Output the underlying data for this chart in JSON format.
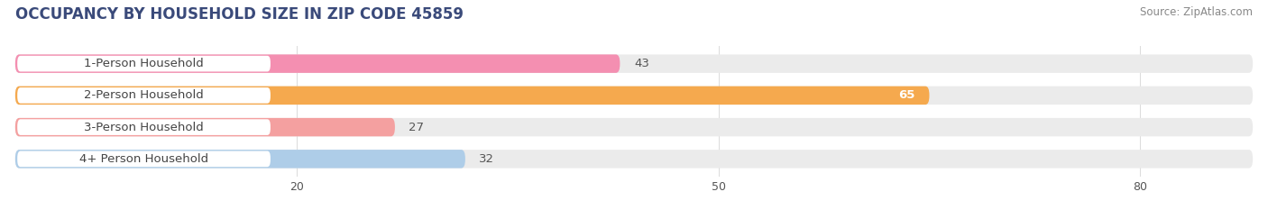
{
  "title": "OCCUPANCY BY HOUSEHOLD SIZE IN ZIP CODE 45859",
  "source": "Source: ZipAtlas.com",
  "categories": [
    "1-Person Household",
    "2-Person Household",
    "3-Person Household",
    "4+ Person Household"
  ],
  "values": [
    43,
    65,
    27,
    32
  ],
  "bar_colors": [
    "#F48FB1",
    "#F5A94E",
    "#F4A0A0",
    "#AECDE8"
  ],
  "xlim_max": 88,
  "xticks": [
    20,
    50,
    80
  ],
  "bar_height": 0.58,
  "background_color": "#ffffff",
  "bar_bg_color": "#ebebeb",
  "title_fontsize": 12,
  "label_fontsize": 9.5,
  "tick_fontsize": 9,
  "source_fontsize": 8.5,
  "value_label_color_inside": "#ffffff",
  "value_label_color_outside": "#555555",
  "title_color": "#3a4a7a",
  "source_color": "#888888",
  "label_text_color": "#444444",
  "grid_color": "#dddddd"
}
